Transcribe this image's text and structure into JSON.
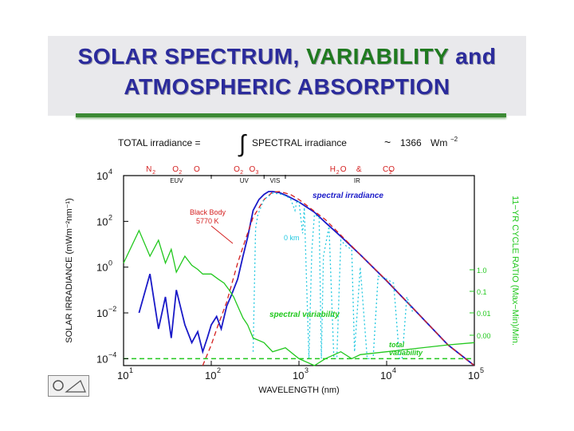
{
  "slide": {
    "title_line1_part1": "SOLAR SPECTRUM, ",
    "title_line1_highlight": "VARIABILITY",
    "title_line1_part2": " and",
    "title_line2": "ATMOSPHERIC ABSORPTION",
    "colors": {
      "title": "#2b2b9c",
      "highlight": "#1f7a1f",
      "rule": "#3c8a34"
    }
  },
  "chart_data": {
    "type": "line",
    "equation": {
      "lhs": "TOTAL irradiance =",
      "integral": "∫",
      "rhs": "SPECTRAL irradiance",
      "approx": "~",
      "value": "1366",
      "unit_base": "Wm",
      "unit_exp": "−2"
    },
    "xlabel": "WAVELENGTH (nm)",
    "ylabel_left": "SOLAR IRRADIANCE (mWm⁻²nm⁻¹)",
    "ylabel_right": "11−YR CYCLE RATIO (Max−Min)/Min.",
    "xscale": "log",
    "yscale": "log",
    "xlim": [
      10,
      100000
    ],
    "ylim": [
      5e-05,
      10000
    ],
    "x_ticks": [
      {
        "base": "10",
        "exp": "1",
        "value": 10
      },
      {
        "base": "10",
        "exp": "2",
        "value": 100
      },
      {
        "base": "10",
        "exp": "3",
        "value": 1000
      },
      {
        "base": "10",
        "exp": "4",
        "value": 10000
      },
      {
        "base": "10",
        "exp": "5",
        "value": 100000
      }
    ],
    "y_ticks": [
      {
        "base": "10",
        "exp": "4",
        "value": 10000
      },
      {
        "base": "10",
        "exp": "2",
        "value": 100
      },
      {
        "base": "10",
        "exp": "0",
        "value": 1
      },
      {
        "base": "10",
        "exp": "−2",
        "value": 0.01
      },
      {
        "base": "10",
        "exp": "−4",
        "value": 0.0001
      }
    ],
    "right_ticks": [
      {
        "label": "1.0",
        "value": 1.0
      },
      {
        "label": "0.1",
        "value": 0.1
      },
      {
        "label": "0.01",
        "value": 0.01
      },
      {
        "label": "0.00",
        "value": 0.001
      }
    ],
    "bands": [
      {
        "label": "EUV",
        "x": 40
      },
      {
        "label": "UV",
        "x": 250
      },
      {
        "label": "VIS",
        "x": 550
      },
      {
        "label": "IR",
        "x": 5000
      }
    ],
    "absorbers": [
      {
        "label": "N",
        "sub": "2",
        "x": 20
      },
      {
        "label": "O",
        "sub": "2",
        "x": 40
      },
      {
        "label": "O",
        "sub": "",
        "x": 70
      },
      {
        "label": "O",
        "sub": "2",
        "x": 200
      },
      {
        "label": "O",
        "sub": "3",
        "x": 300
      },
      {
        "label": "H",
        "sub": "2",
        "suffix": "O",
        "x": 2500
      },
      {
        "label": "&",
        "sub": "",
        "x": 5000
      },
      {
        "label": "CO",
        "sub": "2",
        "x": 10000
      }
    ],
    "annotations": {
      "spectral_irradiance": "spectral irradiance",
      "black_body": "Black Body",
      "black_body_temp": "5770 K",
      "zero_km": "0 km",
      "spectral_variability": "spectral variability",
      "total_variability_1": "total",
      "total_variability_2": "variability"
    },
    "series": [
      {
        "name": "spectral irradiance",
        "color": "#1a1ac8",
        "x": [
          15,
          20,
          25,
          30,
          35,
          40,
          50,
          60,
          70,
          80,
          90,
          100,
          115,
          130,
          150,
          170,
          200,
          230,
          260,
          300,
          350,
          400,
          450,
          500,
          550,
          600,
          700,
          800,
          1000,
          1500,
          2000,
          3000,
          5000,
          10000,
          20000,
          50000,
          100000
        ],
        "y": [
          0.01,
          0.5,
          0.002,
          0.05,
          0.0008,
          0.1,
          0.003,
          0.0005,
          0.0015,
          0.0002,
          0.0008,
          0.003,
          0.007,
          0.002,
          0.02,
          0.06,
          0.3,
          3,
          20,
          300,
          900,
          1500,
          2000,
          2000,
          1900,
          1800,
          1400,
          1100,
          700,
          250,
          90,
          22,
          3.5,
          0.25,
          0.016,
          0.0004,
          2.5e-05
        ]
      },
      {
        "name": "black body 5770 K",
        "color": "#d42020",
        "dash": "6,4",
        "x": [
          80,
          100,
          120,
          150,
          200,
          250,
          300,
          400,
          500,
          600,
          800,
          1000,
          2000,
          5000,
          10000,
          50000,
          100000
        ],
        "y": [
          1e-05,
          0.0004,
          0.003,
          0.03,
          1.5,
          20,
          150,
          900,
          1900,
          2000,
          1500,
          900,
          120,
          3.5,
          0.26,
          0.0004,
          2.5e-05
        ]
      },
      {
        "name": "0 km (surface)",
        "color": "#22c8e0",
        "dash": "2,3",
        "x": [
          300,
          320,
          340,
          400,
          500,
          600,
          700,
          800,
          900,
          950,
          1000,
          1100,
          1150,
          1300,
          1400,
          1500,
          1700,
          1800,
          1900,
          2200,
          2500,
          2700,
          3000,
          3500,
          4000,
          4300,
          5000,
          6000,
          7000,
          8000,
          10000,
          12000,
          14000,
          15000,
          17000,
          20000
        ],
        "y": [
          0.0002,
          50,
          200,
          900,
          1700,
          1600,
          1300,
          1000,
          300,
          800,
          700,
          30,
          400,
          0.0001,
          5,
          200,
          150,
          0.0001,
          3,
          60,
          0.0001,
          0.0001,
          15,
          8,
          6,
          0.0002,
          1,
          0.0001,
          0.0001,
          0.4,
          0.3,
          0.2,
          0.0001,
          0.0001,
          0.05,
          0.01
        ]
      },
      {
        "name": "spectral variability (11-yr ratio)",
        "color": "#22c81e",
        "x": [
          10,
          15,
          20,
          25,
          30,
          35,
          40,
          50,
          60,
          70,
          80,
          100,
          120,
          140,
          160,
          180,
          200,
          230,
          260,
          300,
          400,
          500,
          700,
          1000,
          1500,
          2000,
          3000,
          4000,
          5000,
          10000,
          50000,
          100000
        ],
        "y": [
          1.5,
          40,
          3,
          15,
          1.5,
          6,
          0.6,
          3,
          1.2,
          0.8,
          0.5,
          0.5,
          0.3,
          0.2,
          0.1,
          0.05,
          0.02,
          0.006,
          0.003,
          0.0008,
          0.0005,
          0.0002,
          0.0003,
          0.0001,
          5e-05,
          0.0001,
          0.0002,
          0.0001,
          0.00015,
          0.0002,
          0.0004,
          0.0005
        ]
      }
    ],
    "reference_line": {
      "name": "total variability",
      "color": "#22c81e",
      "y": 0.0001
    },
    "legend": "none",
    "grid": false
  }
}
